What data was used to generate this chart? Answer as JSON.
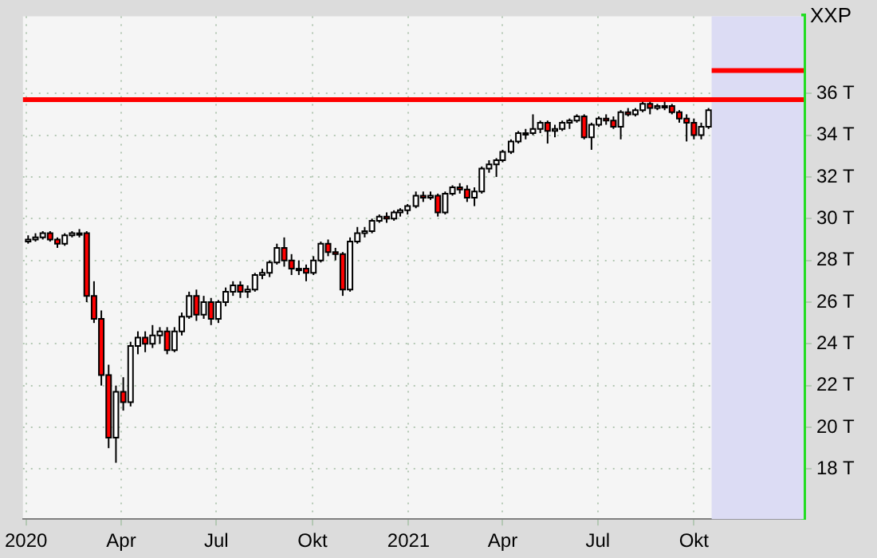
{
  "chart_data": {
    "type": "candlestick",
    "title": "XXP",
    "x": [
      "2020-01-03",
      "2020-01-10",
      "2020-01-17",
      "2020-01-24",
      "2020-01-31",
      "2020-02-07",
      "2020-02-14",
      "2020-02-21",
      "2020-02-28",
      "2020-03-06",
      "2020-03-13",
      "2020-03-20",
      "2020-03-27",
      "2020-04-03",
      "2020-04-10",
      "2020-04-17",
      "2020-04-24",
      "2020-05-01",
      "2020-05-08",
      "2020-05-15",
      "2020-05-22",
      "2020-05-29",
      "2020-06-05",
      "2020-06-12",
      "2020-06-19",
      "2020-06-26",
      "2020-07-03",
      "2020-07-10",
      "2020-07-17",
      "2020-07-24",
      "2020-07-31",
      "2020-08-07",
      "2020-08-14",
      "2020-08-21",
      "2020-08-28",
      "2020-09-04",
      "2020-09-11",
      "2020-09-18",
      "2020-09-25",
      "2020-10-02",
      "2020-10-09",
      "2020-10-16",
      "2020-10-23",
      "2020-10-30",
      "2020-11-06",
      "2020-11-13",
      "2020-11-20",
      "2020-11-27",
      "2020-12-04",
      "2020-12-11",
      "2020-12-18",
      "2020-12-24",
      "2020-12-31",
      "2021-01-08",
      "2021-01-15",
      "2021-01-22",
      "2021-01-29",
      "2021-02-05",
      "2021-02-12",
      "2021-02-19",
      "2021-02-26",
      "2021-03-05",
      "2021-03-12",
      "2021-03-19",
      "2021-03-26",
      "2021-04-01",
      "2021-04-09",
      "2021-04-16",
      "2021-04-23",
      "2021-04-30",
      "2021-05-07",
      "2021-05-14",
      "2021-05-21",
      "2021-05-28",
      "2021-06-04",
      "2021-06-11",
      "2021-06-18",
      "2021-06-25",
      "2021-07-02",
      "2021-07-09",
      "2021-07-16",
      "2021-07-23",
      "2021-07-30",
      "2021-08-06",
      "2021-08-13",
      "2021-08-20",
      "2021-08-27",
      "2021-09-03",
      "2021-09-10",
      "2021-09-17",
      "2021-09-24",
      "2021-10-01",
      "2021-10-08",
      "2021-10-15"
    ],
    "ohlc": [
      [
        28.9,
        29.2,
        28.8,
        29.0
      ],
      [
        29.0,
        29.3,
        28.9,
        29.1
      ],
      [
        29.1,
        29.4,
        29.0,
        29.3
      ],
      [
        29.3,
        29.4,
        28.9,
        29.0
      ],
      [
        29.0,
        29.1,
        28.6,
        28.8
      ],
      [
        28.8,
        29.3,
        28.7,
        29.2
      ],
      [
        29.2,
        29.4,
        29.1,
        29.3
      ],
      [
        29.3,
        29.5,
        29.1,
        29.3
      ],
      [
        29.3,
        29.4,
        26.0,
        26.3
      ],
      [
        26.3,
        27.0,
        25.0,
        25.2
      ],
      [
        25.2,
        25.6,
        22.0,
        22.5
      ],
      [
        22.5,
        23.0,
        19.0,
        19.5
      ],
      [
        19.5,
        22.0,
        18.3,
        21.7
      ],
      [
        21.7,
        22.4,
        20.8,
        21.2
      ],
      [
        21.2,
        24.1,
        21.0,
        23.9
      ],
      [
        23.9,
        24.6,
        23.5,
        24.3
      ],
      [
        24.3,
        24.6,
        23.6,
        24.0
      ],
      [
        24.0,
        24.9,
        23.8,
        24.4
      ],
      [
        24.4,
        24.8,
        24.0,
        24.6
      ],
      [
        24.6,
        24.8,
        23.5,
        23.7
      ],
      [
        23.7,
        24.8,
        23.6,
        24.6
      ],
      [
        24.6,
        25.5,
        24.4,
        25.3
      ],
      [
        25.3,
        26.5,
        25.2,
        26.3
      ],
      [
        26.3,
        26.6,
        25.1,
        25.4
      ],
      [
        25.4,
        26.3,
        25.2,
        26.0
      ],
      [
        26.0,
        26.2,
        24.9,
        25.2
      ],
      [
        25.2,
        26.1,
        25.0,
        26.0
      ],
      [
        26.0,
        26.7,
        25.8,
        26.5
      ],
      [
        26.5,
        27.0,
        26.3,
        26.8
      ],
      [
        26.8,
        27.0,
        26.2,
        26.5
      ],
      [
        26.5,
        26.8,
        26.2,
        26.6
      ],
      [
        26.6,
        27.4,
        26.5,
        27.3
      ],
      [
        27.3,
        27.6,
        27.1,
        27.4
      ],
      [
        27.4,
        28.0,
        27.2,
        27.9
      ],
      [
        27.9,
        28.8,
        27.8,
        28.6
      ],
      [
        28.6,
        29.1,
        27.7,
        28.0
      ],
      [
        28.0,
        28.3,
        27.3,
        27.6
      ],
      [
        27.6,
        28.0,
        27.3,
        27.6
      ],
      [
        27.6,
        27.8,
        27.0,
        27.4
      ],
      [
        27.4,
        28.2,
        27.3,
        28.0
      ],
      [
        28.0,
        28.9,
        27.9,
        28.8
      ],
      [
        28.8,
        29.0,
        28.2,
        28.4
      ],
      [
        28.4,
        28.6,
        28.0,
        28.3
      ],
      [
        28.3,
        28.4,
        26.3,
        26.6
      ],
      [
        26.6,
        29.1,
        26.5,
        28.9
      ],
      [
        28.9,
        29.6,
        28.8,
        29.3
      ],
      [
        29.3,
        29.6,
        29.1,
        29.4
      ],
      [
        29.4,
        30.0,
        29.3,
        29.9
      ],
      [
        29.9,
        30.2,
        29.8,
        30.1
      ],
      [
        30.1,
        30.3,
        29.8,
        30.0
      ],
      [
        30.0,
        30.4,
        29.9,
        30.3
      ],
      [
        30.3,
        30.5,
        30.1,
        30.4
      ],
      [
        30.4,
        30.7,
        30.2,
        30.6
      ],
      [
        30.6,
        31.3,
        30.5,
        31.1
      ],
      [
        31.1,
        31.3,
        30.8,
        31.0
      ],
      [
        31.0,
        31.3,
        30.9,
        31.1
      ],
      [
        31.1,
        31.2,
        30.1,
        30.3
      ],
      [
        30.3,
        31.3,
        30.2,
        31.2
      ],
      [
        31.2,
        31.6,
        31.1,
        31.5
      ],
      [
        31.5,
        31.7,
        31.2,
        31.4
      ],
      [
        31.4,
        31.6,
        30.8,
        31.0
      ],
      [
        31.0,
        31.5,
        30.6,
        31.3
      ],
      [
        31.3,
        32.5,
        31.2,
        32.4
      ],
      [
        32.4,
        32.8,
        32.2,
        32.6
      ],
      [
        32.6,
        32.9,
        32.0,
        32.8
      ],
      [
        32.8,
        33.3,
        32.7,
        33.2
      ],
      [
        33.2,
        33.8,
        33.1,
        33.7
      ],
      [
        33.7,
        34.2,
        33.6,
        34.1
      ],
      [
        34.1,
        34.3,
        33.8,
        34.1
      ],
      [
        34.1,
        35.0,
        34.0,
        34.3
      ],
      [
        34.3,
        34.7,
        34.1,
        34.6
      ],
      [
        34.6,
        34.7,
        33.6,
        34.2
      ],
      [
        34.2,
        34.5,
        33.9,
        34.3
      ],
      [
        34.3,
        34.7,
        34.2,
        34.6
      ],
      [
        34.6,
        34.8,
        34.3,
        34.7
      ],
      [
        34.7,
        35.0,
        34.6,
        34.9
      ],
      [
        34.9,
        35.0,
        33.8,
        33.9
      ],
      [
        33.9,
        34.6,
        33.3,
        34.5
      ],
      [
        34.5,
        34.9,
        34.4,
        34.8
      ],
      [
        34.8,
        35.0,
        34.5,
        34.7
      ],
      [
        34.7,
        34.9,
        34.3,
        34.4
      ],
      [
        34.4,
        35.2,
        33.8,
        35.1
      ],
      [
        35.1,
        35.3,
        34.9,
        35.0
      ],
      [
        35.0,
        35.3,
        34.9,
        35.2
      ],
      [
        35.2,
        35.6,
        35.1,
        35.5
      ],
      [
        35.5,
        35.6,
        35.0,
        35.3
      ],
      [
        35.3,
        35.5,
        35.2,
        35.4
      ],
      [
        35.4,
        35.6,
        35.2,
        35.4
      ],
      [
        35.4,
        35.5,
        35.0,
        35.1
      ],
      [
        35.1,
        35.2,
        34.6,
        34.8
      ],
      [
        34.8,
        35.0,
        33.7,
        34.6
      ],
      [
        34.6,
        34.8,
        33.8,
        34.0
      ],
      [
        34.0,
        34.6,
        33.8,
        34.4
      ],
      [
        34.4,
        35.3,
        34.3,
        35.2
      ]
    ],
    "series": [
      {
        "type": "line",
        "color": "#ff0000",
        "x": [
          "2021-10-18",
          "2022-01-14"
        ],
        "values": [
          37.1,
          37.1
        ]
      }
    ],
    "ref_lines": [
      {
        "axis": "y",
        "value": 35.7,
        "color": "#ff0000"
      }
    ],
    "bands": [
      {
        "axis": "x",
        "from": "2021-10-18",
        "to": "2022-01-14",
        "color": "#dcdcf4"
      }
    ],
    "xlim": [
      "2019-12-29",
      "2022-01-14"
    ],
    "xticks": [
      {
        "value": "2020-01-01",
        "label": "2020"
      },
      {
        "value": "2020-04-01",
        "label": "Apr"
      },
      {
        "value": "2020-07-01",
        "label": "Jul"
      },
      {
        "value": "2020-10-01",
        "label": "Okt"
      },
      {
        "value": "2021-01-01",
        "label": "2021"
      },
      {
        "value": "2021-04-01",
        "label": "Apr"
      },
      {
        "value": "2021-07-01",
        "label": "Jul"
      },
      {
        "value": "2021-10-01",
        "label": "Okt"
      }
    ],
    "ylim": [
      15.6,
      39.7
    ],
    "yticks": [
      {
        "value": 18,
        "label": "18 T"
      },
      {
        "value": 20,
        "label": "20 T"
      },
      {
        "value": 22,
        "label": "22 T"
      },
      {
        "value": 24,
        "label": "24 T"
      },
      {
        "value": 26,
        "label": "26 T"
      },
      {
        "value": 28,
        "label": "28 T"
      },
      {
        "value": 30,
        "label": "30 T"
      },
      {
        "value": 32,
        "label": "32 T"
      },
      {
        "value": 34,
        "label": "34 T"
      },
      {
        "value": 36,
        "label": "36 T"
      }
    ],
    "grid": true
  }
}
